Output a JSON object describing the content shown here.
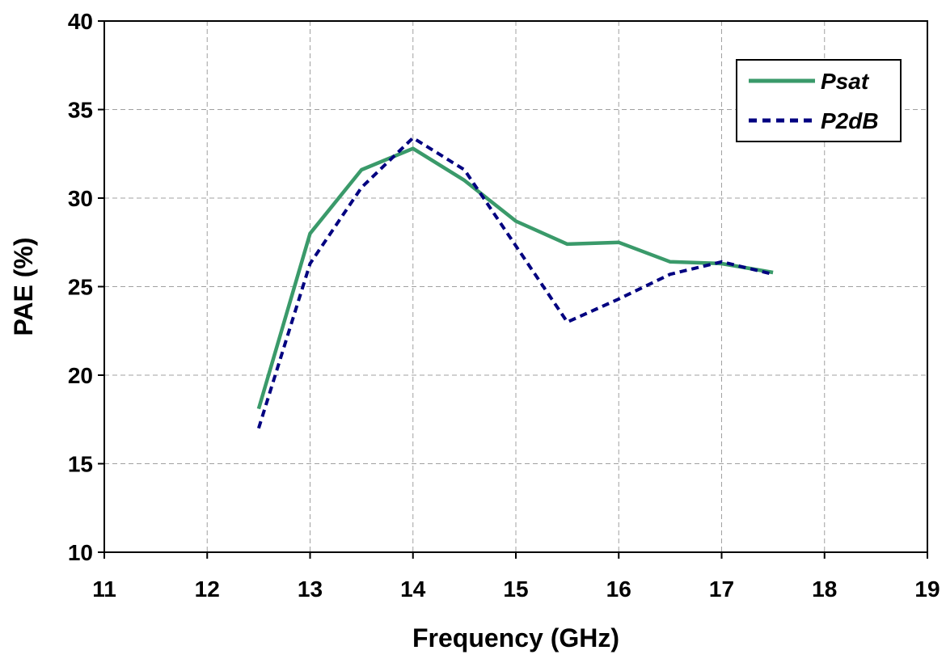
{
  "chart_data": {
    "type": "line",
    "title": "",
    "xlabel": "Frequency (GHz)",
    "ylabel": "PAE (%)",
    "xlim": [
      11,
      19
    ],
    "ylim": [
      10,
      40
    ],
    "xticks": [
      11,
      12,
      13,
      14,
      15,
      16,
      17,
      18,
      19
    ],
    "yticks": [
      10,
      15,
      20,
      25,
      30,
      35,
      40
    ],
    "grid": true,
    "legend_position": "top-right",
    "series": [
      {
        "name": "Psat",
        "color": "#3a9a6a",
        "style": "solid",
        "x": [
          12.5,
          13,
          13.5,
          14,
          14.5,
          15,
          15.5,
          16,
          16.5,
          17,
          17.5
        ],
        "y": [
          18.1,
          28.0,
          31.6,
          32.8,
          31.0,
          28.7,
          27.4,
          27.5,
          26.4,
          26.3,
          25.8
        ]
      },
      {
        "name": "P2dB",
        "color": "#000080",
        "style": "dashed",
        "x": [
          12.5,
          13,
          13.5,
          14,
          14.5,
          15,
          15.5,
          16,
          16.5,
          17,
          17.5
        ],
        "y": [
          17.0,
          26.3,
          30.6,
          33.4,
          31.6,
          27.3,
          23.0,
          24.3,
          25.7,
          26.4,
          25.7
        ]
      }
    ]
  }
}
